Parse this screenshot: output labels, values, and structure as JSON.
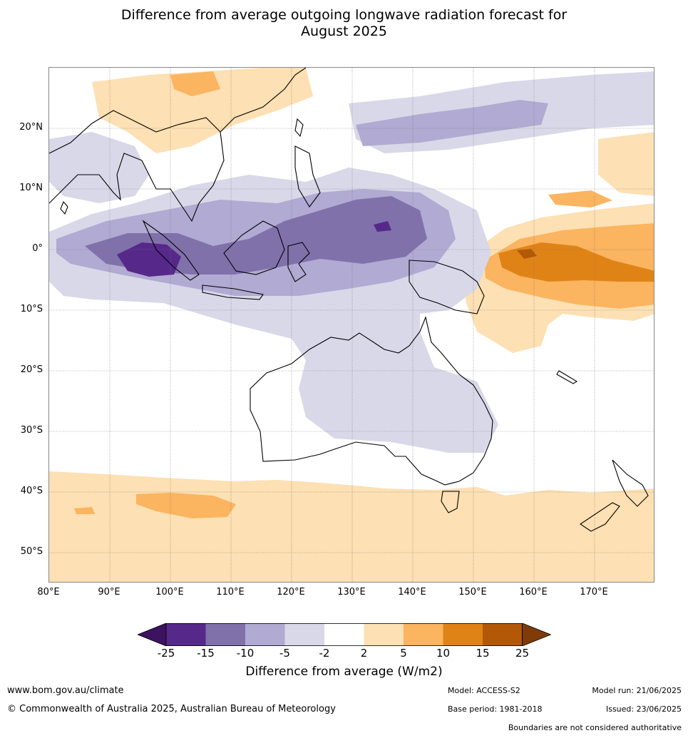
{
  "title": {
    "line1": "Difference from average outgoing longwave radiation forecast for",
    "line2": "August 2025"
  },
  "map": {
    "lat_labels": [
      "20°N",
      "10°N",
      "0°",
      "10°S",
      "20°S",
      "30°S",
      "40°S",
      "50°S"
    ],
    "lon_labels": [
      "80°E",
      "90°E",
      "100°E",
      "110°E",
      "120°E",
      "130°E",
      "140°E",
      "150°E",
      "160°E",
      "170°E"
    ],
    "extent": {
      "lon_min": 80,
      "lon_max": 180,
      "lat_min": -55,
      "lat_max": 30
    },
    "colors": {
      "neg_25": "#3d1260",
      "neg_15_25": "#56288a",
      "neg_10_15": "#8071ab",
      "neg_5_10": "#b1aad2",
      "neg_2_5": "#d9d8e9",
      "neutral": "#ffffff",
      "pos_2_5": "#fde0b3",
      "pos_5_10": "#fbb45f",
      "pos_10_15": "#e08316",
      "pos_15_25": "#b35807",
      "pos_25": "#7f3b08"
    }
  },
  "colorbar": {
    "ticks": [
      "-25",
      "-15",
      "-10",
      "-5",
      "-2",
      "2",
      "5",
      "10",
      "15",
      "25"
    ],
    "label": "Difference from average (W/m2)",
    "bins": [
      "#56288a",
      "#8071ab",
      "#b1aad2",
      "#d9d8e9",
      "#ffffff",
      "#fde0b3",
      "#fbb45f",
      "#e08316",
      "#b35807"
    ],
    "low_extend_color": "#3d1260",
    "high_extend_color": "#7f3b08"
  },
  "footer": {
    "website": "www.bom.gov.au/climate",
    "copyright": "© Commonwealth of Australia 2025, Australian Bureau of Meteorology",
    "model": "Model: ACCESS-S2",
    "base_period": "Base period: 1981-2018",
    "model_run": "Model run: 21/06/2025",
    "issued": "Issued: 23/06/2025",
    "disclaimer": "Boundaries are not considered authoritative"
  }
}
